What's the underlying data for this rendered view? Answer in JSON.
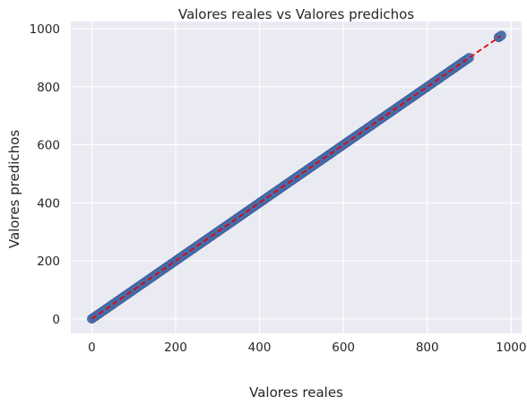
{
  "chart_data": {
    "type": "scatter",
    "title": "Valores reales vs Valores predichos",
    "xlabel": "Valores reales",
    "ylabel": "Valores predichos",
    "xlim": [
      -50,
      1025
    ],
    "ylim": [
      -50,
      1025
    ],
    "xticks": [
      0,
      200,
      400,
      600,
      800,
      1000
    ],
    "yticks": [
      0,
      200,
      400,
      600,
      800,
      1000
    ],
    "xtick_labels": [
      "0",
      "200",
      "400",
      "600",
      "800",
      "1000"
    ],
    "ytick_labels": [
      "0",
      "200",
      "400",
      "600",
      "800",
      "1000"
    ],
    "grid": true,
    "series": [
      {
        "kind": "points",
        "color": "#4c72b0",
        "x_range": [
          0,
          975
        ],
        "relation": "y = x",
        "dense_to": 900,
        "extra_points": [
          {
            "x": 970,
            "y": 970
          },
          {
            "x": 973,
            "y": 973
          },
          {
            "x": 977,
            "y": 977
          }
        ]
      },
      {
        "kind": "reference-line",
        "color": "#e8000b",
        "style": "dashed",
        "x": [
          0,
          975
        ],
        "y": [
          0,
          975
        ]
      }
    ],
    "colors": {
      "background": "#eaeaf2",
      "grid": "#ffffff",
      "points": "#4c72b0",
      "point_edge": "#3a5c94",
      "reference_line": "#e8000b"
    }
  }
}
